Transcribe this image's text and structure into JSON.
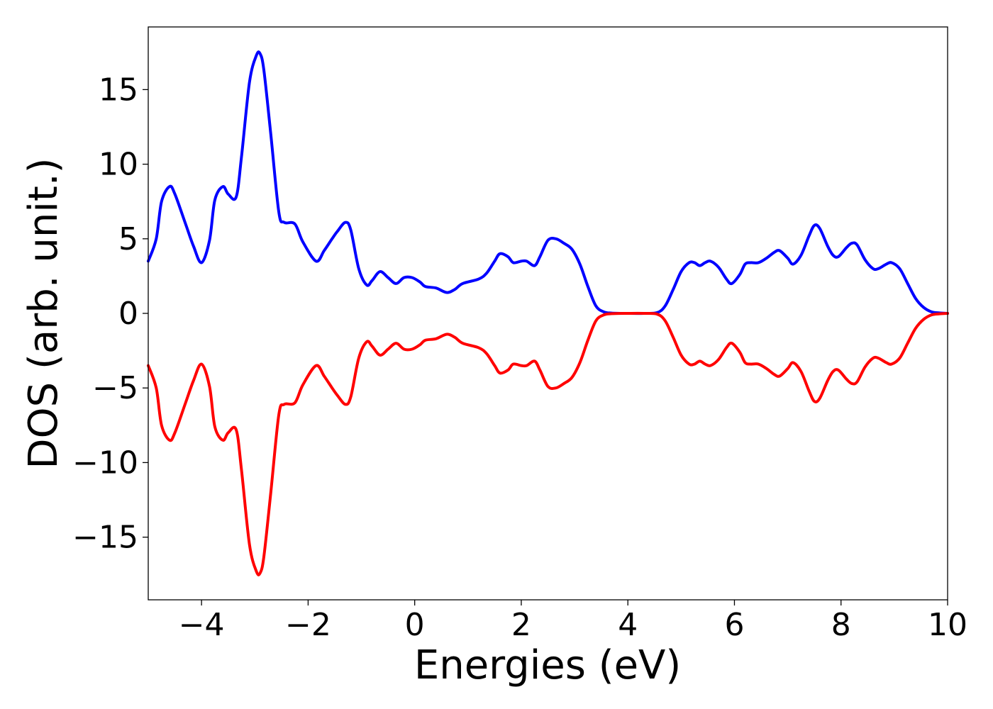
{
  "chart_data": {
    "type": "line",
    "title": "",
    "xlabel": "Energies (eV)",
    "ylabel": "DOS (arb. unit.)",
    "xlim": [
      -5,
      10
    ],
    "ylim": [
      -19.2,
      19.2
    ],
    "xticks": [
      -4,
      -2,
      0,
      2,
      4,
      6,
      8,
      10
    ],
    "yticks": [
      -15,
      -10,
      -5,
      0,
      5,
      10,
      15
    ],
    "xtick_labels": [
      "−4",
      "−2",
      "0",
      "2",
      "4",
      "6",
      "8",
      "10"
    ],
    "ytick_labels": [
      "−15",
      "−10",
      "−5",
      "0",
      "5",
      "10",
      "15"
    ],
    "grid": false,
    "series": [
      {
        "color": "#0000ff",
        "x": [
          -5.0,
          -4.85,
          -4.75,
          -4.6,
          -4.5,
          -4.3,
          -4.15,
          -4.0,
          -3.85,
          -3.75,
          -3.6,
          -3.5,
          -3.35,
          -3.25,
          -3.1,
          -2.97,
          -2.9,
          -2.83,
          -2.7,
          -2.55,
          -2.45,
          -2.25,
          -2.1,
          -1.85,
          -1.7,
          -1.55,
          -1.45,
          -1.3,
          -1.2,
          -1.05,
          -0.9,
          -0.8,
          -0.65,
          -0.5,
          -0.35,
          -0.2,
          -0.05,
          0.1,
          0.2,
          0.4,
          0.6,
          0.75,
          0.9,
          1.2,
          1.35,
          1.5,
          1.6,
          1.75,
          1.85,
          2.0,
          2.1,
          2.25,
          2.35,
          2.5,
          2.65,
          2.8,
          2.95,
          3.1,
          3.25,
          3.4,
          3.55,
          3.7,
          4.0,
          4.3,
          4.55,
          4.7,
          4.85,
          5.0,
          5.15,
          5.25,
          5.35,
          5.45,
          5.55,
          5.7,
          5.85,
          5.95,
          6.1,
          6.2,
          6.3,
          6.45,
          6.6,
          6.75,
          6.85,
          7.0,
          7.1,
          7.25,
          7.4,
          7.5,
          7.6,
          7.75,
          7.85,
          7.95,
          8.1,
          8.2,
          8.3,
          8.45,
          8.6,
          8.7,
          8.85,
          8.95,
          9.1,
          9.25,
          9.4,
          9.55,
          9.7,
          9.85,
          10.0
        ],
        "values": [
          3.5,
          5.0,
          7.5,
          8.5,
          8.0,
          6.0,
          4.5,
          3.4,
          4.9,
          7.6,
          8.5,
          8.0,
          7.8,
          10.5,
          15.5,
          17.3,
          17.4,
          16.3,
          12.0,
          6.8,
          6.1,
          6.0,
          4.8,
          3.5,
          4.2,
          5.0,
          5.5,
          6.1,
          5.6,
          3.0,
          1.9,
          2.2,
          2.8,
          2.4,
          2.0,
          2.4,
          2.4,
          2.1,
          1.8,
          1.7,
          1.4,
          1.6,
          2.0,
          2.3,
          2.7,
          3.5,
          4.0,
          3.8,
          3.4,
          3.5,
          3.5,
          3.2,
          3.8,
          4.9,
          5.0,
          4.7,
          4.3,
          3.3,
          1.8,
          0.5,
          0.1,
          0.02,
          0.0,
          0.0,
          0.05,
          0.5,
          1.6,
          2.8,
          3.4,
          3.4,
          3.2,
          3.4,
          3.5,
          3.1,
          2.3,
          2.0,
          2.6,
          3.3,
          3.4,
          3.4,
          3.7,
          4.1,
          4.2,
          3.7,
          3.3,
          3.9,
          5.2,
          5.9,
          5.7,
          4.5,
          3.9,
          3.8,
          4.4,
          4.7,
          4.6,
          3.6,
          3.0,
          3.0,
          3.3,
          3.4,
          3.0,
          2.0,
          1.0,
          0.4,
          0.1,
          0.03,
          0.0
        ]
      },
      {
        "color": "#ff0000",
        "x": [
          -5.0,
          -4.85,
          -4.75,
          -4.6,
          -4.5,
          -4.3,
          -4.15,
          -4.0,
          -3.85,
          -3.75,
          -3.6,
          -3.5,
          -3.35,
          -3.25,
          -3.1,
          -2.97,
          -2.9,
          -2.83,
          -2.7,
          -2.55,
          -2.45,
          -2.25,
          -2.1,
          -1.85,
          -1.7,
          -1.55,
          -1.45,
          -1.3,
          -1.2,
          -1.05,
          -0.9,
          -0.8,
          -0.65,
          -0.5,
          -0.35,
          -0.2,
          -0.05,
          0.1,
          0.2,
          0.4,
          0.6,
          0.75,
          0.9,
          1.2,
          1.35,
          1.5,
          1.6,
          1.75,
          1.85,
          2.0,
          2.1,
          2.25,
          2.35,
          2.5,
          2.65,
          2.8,
          2.95,
          3.1,
          3.25,
          3.4,
          3.55,
          3.7,
          4.0,
          4.3,
          4.55,
          4.7,
          4.85,
          5.0,
          5.15,
          5.25,
          5.35,
          5.45,
          5.55,
          5.7,
          5.85,
          5.95,
          6.1,
          6.2,
          6.3,
          6.45,
          6.6,
          6.75,
          6.85,
          7.0,
          7.1,
          7.25,
          7.4,
          7.5,
          7.6,
          7.75,
          7.85,
          7.95,
          8.1,
          8.2,
          8.3,
          8.45,
          8.6,
          8.7,
          8.85,
          8.95,
          9.1,
          9.25,
          9.4,
          9.55,
          9.7,
          9.85,
          10.0
        ],
        "values": [
          -3.5,
          -5.0,
          -7.5,
          -8.5,
          -8.0,
          -6.0,
          -4.5,
          -3.4,
          -4.9,
          -7.6,
          -8.5,
          -8.0,
          -7.8,
          -10.5,
          -15.5,
          -17.3,
          -17.4,
          -16.3,
          -12.0,
          -6.8,
          -6.1,
          -6.0,
          -4.8,
          -3.5,
          -4.2,
          -5.0,
          -5.5,
          -6.1,
          -5.6,
          -3.0,
          -1.9,
          -2.2,
          -2.8,
          -2.4,
          -2.0,
          -2.4,
          -2.4,
          -2.1,
          -1.8,
          -1.7,
          -1.4,
          -1.6,
          -2.0,
          -2.3,
          -2.7,
          -3.5,
          -4.0,
          -3.8,
          -3.4,
          -3.5,
          -3.5,
          -3.2,
          -3.8,
          -4.9,
          -5.0,
          -4.7,
          -4.3,
          -3.3,
          -1.8,
          -0.5,
          -0.1,
          -0.02,
          0.0,
          0.0,
          -0.05,
          -0.5,
          -1.6,
          -2.8,
          -3.4,
          -3.4,
          -3.2,
          -3.4,
          -3.5,
          -3.1,
          -2.3,
          -2.0,
          -2.6,
          -3.3,
          -3.4,
          -3.4,
          -3.7,
          -4.1,
          -4.2,
          -3.7,
          -3.3,
          -3.9,
          -5.2,
          -5.9,
          -5.7,
          -4.5,
          -3.9,
          -3.8,
          -4.4,
          -4.7,
          -4.6,
          -3.6,
          -3.0,
          -3.0,
          -3.3,
          -3.4,
          -3.0,
          -2.0,
          -1.0,
          -0.4,
          -0.1,
          -0.03,
          0.0
        ]
      }
    ]
  }
}
